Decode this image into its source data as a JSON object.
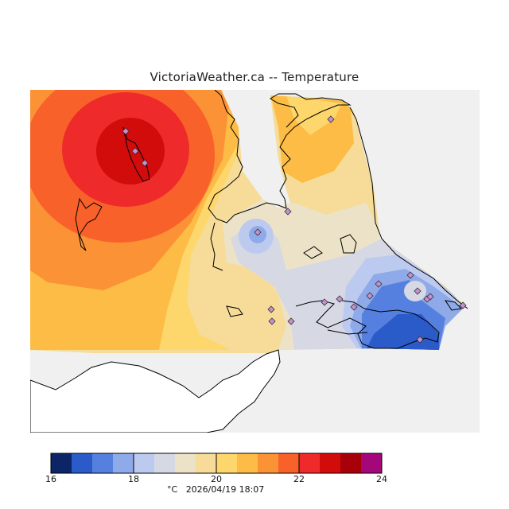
{
  "title": "VictoriaWeather.ca -- Temperature",
  "colorbar": {
    "ticks": [
      "16",
      "18",
      "20",
      "22",
      "24"
    ],
    "colors": [
      "#0b2566",
      "#2b5bc9",
      "#5580df",
      "#8faae8",
      "#bdcaf0",
      "#d6d8e4",
      "#ece2c8",
      "#f6dc98",
      "#fdd66c",
      "#fcbc45",
      "#fc9236",
      "#f9612a",
      "#ef2a2a",
      "#d20b0b",
      "#a80008",
      "#a3077a"
    ]
  },
  "caption": {
    "unit": "°C",
    "timestamp": "2026/04/19 18:07"
  },
  "map": {
    "background": "#f0f0f0",
    "station_marker_color": "#c58fd0"
  }
}
